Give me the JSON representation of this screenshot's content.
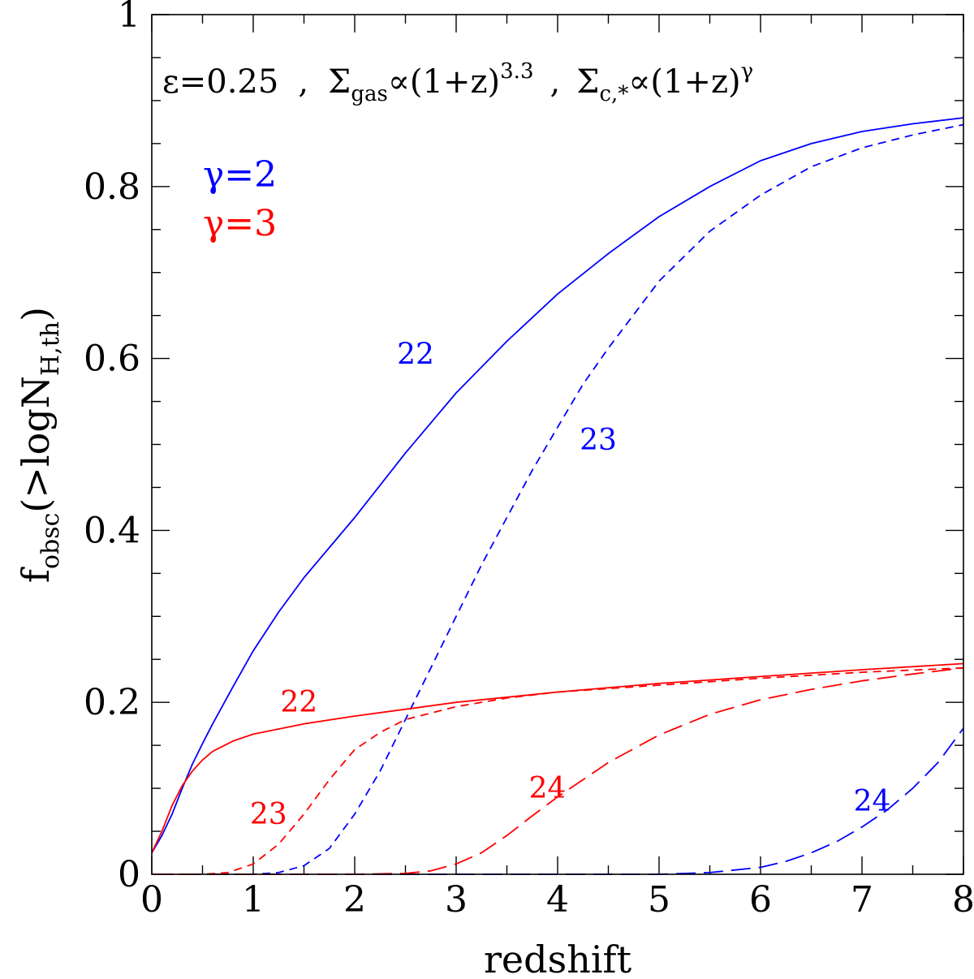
{
  "chart_data": {
    "type": "line",
    "xlabel": "redshift",
    "ylabel": "f_obsc(>logN_H,th)",
    "ylabel_parts": {
      "main": "f",
      "sub1": "obsc",
      "mid": "(>logN",
      "sub2": "H,th",
      "end": ")"
    },
    "xlim": [
      0,
      8
    ],
    "ylim": [
      0,
      1
    ],
    "x_ticks": [
      "0",
      "1",
      "2",
      "3",
      "4",
      "5",
      "6",
      "7",
      "8"
    ],
    "y_ticks": [
      "0",
      "0.2",
      "0.4",
      "0.6",
      "0.8",
      "1"
    ],
    "annotation": {
      "eps": "ε=0.25",
      "sep1": ",",
      "sigma_gas": "Σ",
      "gas_sub": "gas",
      "prop1": "∝(1+z)",
      "exp1": "3.3",
      "sep2": ",",
      "sigma_c": "Σ",
      "c_sub": "c,*",
      "prop2": "∝(1+z)",
      "exp2": "γ"
    },
    "legend": [
      {
        "label": "γ=2",
        "color": "#0000ff"
      },
      {
        "label": "γ=3",
        "color": "#ff0000"
      }
    ],
    "series": [
      {
        "gamma": "2",
        "threshold": "22",
        "color": "#0000ff",
        "dash": "solid",
        "label_pos": [
          2.6,
          0.605
        ],
        "x": [
          0,
          0.1,
          0.2,
          0.3,
          0.4,
          0.5,
          0.6,
          0.8,
          1.0,
          1.25,
          1.5,
          2.0,
          2.5,
          3.0,
          3.5,
          4.0,
          4.5,
          5.0,
          5.5,
          6.0,
          6.5,
          7.0,
          7.5,
          8.0
        ],
        "y": [
          0.025,
          0.045,
          0.07,
          0.1,
          0.128,
          0.152,
          0.175,
          0.218,
          0.26,
          0.305,
          0.345,
          0.415,
          0.49,
          0.56,
          0.62,
          0.675,
          0.722,
          0.765,
          0.8,
          0.83,
          0.85,
          0.864,
          0.873,
          0.88
        ]
      },
      {
        "gamma": "2",
        "threshold": "23",
        "color": "#0000ff",
        "dash": "short",
        "label_pos": [
          4.4,
          0.505
        ],
        "x": [
          0,
          0.5,
          1.0,
          1.25,
          1.5,
          1.75,
          2.0,
          2.25,
          2.5,
          2.75,
          3.0,
          3.25,
          3.5,
          3.75,
          4.0,
          4.25,
          4.5,
          5.0,
          5.5,
          6.0,
          6.5,
          7.0,
          7.5,
          8.0
        ],
        "y": [
          0,
          0,
          0,
          0.002,
          0.01,
          0.03,
          0.07,
          0.12,
          0.18,
          0.24,
          0.3,
          0.36,
          0.415,
          0.47,
          0.52,
          0.57,
          0.612,
          0.69,
          0.748,
          0.79,
          0.823,
          0.845,
          0.86,
          0.872
        ]
      },
      {
        "gamma": "2",
        "threshold": "24",
        "color": "#0000ff",
        "dash": "long",
        "label_pos": [
          7.1,
          0.085
        ],
        "x": [
          0,
          1,
          2,
          3,
          4,
          5,
          5.5,
          6.0,
          6.25,
          6.5,
          6.75,
          7.0,
          7.25,
          7.5,
          7.75,
          8.0
        ],
        "y": [
          0,
          0,
          0,
          0,
          0,
          0,
          0.002,
          0.008,
          0.015,
          0.025,
          0.038,
          0.055,
          0.075,
          0.1,
          0.13,
          0.17
        ]
      },
      {
        "gamma": "3",
        "threshold": "22",
        "color": "#ff0000",
        "dash": "solid",
        "label_pos": [
          1.45,
          0.2
        ],
        "x": [
          0,
          0.1,
          0.2,
          0.3,
          0.4,
          0.5,
          0.6,
          0.8,
          1.0,
          1.5,
          2.0,
          2.5,
          3.0,
          4.0,
          5.0,
          6.0,
          7.0,
          8.0
        ],
        "y": [
          0.025,
          0.05,
          0.08,
          0.103,
          0.12,
          0.133,
          0.143,
          0.155,
          0.163,
          0.175,
          0.184,
          0.192,
          0.2,
          0.212,
          0.222,
          0.23,
          0.238,
          0.245
        ]
      },
      {
        "gamma": "3",
        "threshold": "23",
        "color": "#ff0000",
        "dash": "short",
        "label_pos": [
          1.15,
          0.07
        ],
        "x": [
          0,
          0.5,
          0.75,
          1.0,
          1.25,
          1.5,
          1.75,
          2.0,
          2.25,
          2.5,
          3.0,
          3.5,
          4.0,
          5.0,
          6.0,
          7.0,
          8.0
        ],
        "y": [
          0,
          0,
          0.002,
          0.012,
          0.035,
          0.07,
          0.11,
          0.145,
          0.165,
          0.18,
          0.195,
          0.205,
          0.212,
          0.22,
          0.228,
          0.235,
          0.24
        ]
      },
      {
        "gamma": "3",
        "threshold": "24",
        "color": "#ff0000",
        "dash": "long",
        "label_pos": [
          3.9,
          0.1
        ],
        "x": [
          0,
          1,
          2,
          2.5,
          2.75,
          3.0,
          3.25,
          3.5,
          3.75,
          4.0,
          4.25,
          4.5,
          5.0,
          5.5,
          6.0,
          6.5,
          7.0,
          7.5,
          8.0
        ],
        "y": [
          0,
          0,
          0,
          0.001,
          0.004,
          0.012,
          0.025,
          0.045,
          0.068,
          0.09,
          0.11,
          0.13,
          0.162,
          0.186,
          0.203,
          0.215,
          0.225,
          0.233,
          0.24
        ]
      }
    ]
  }
}
